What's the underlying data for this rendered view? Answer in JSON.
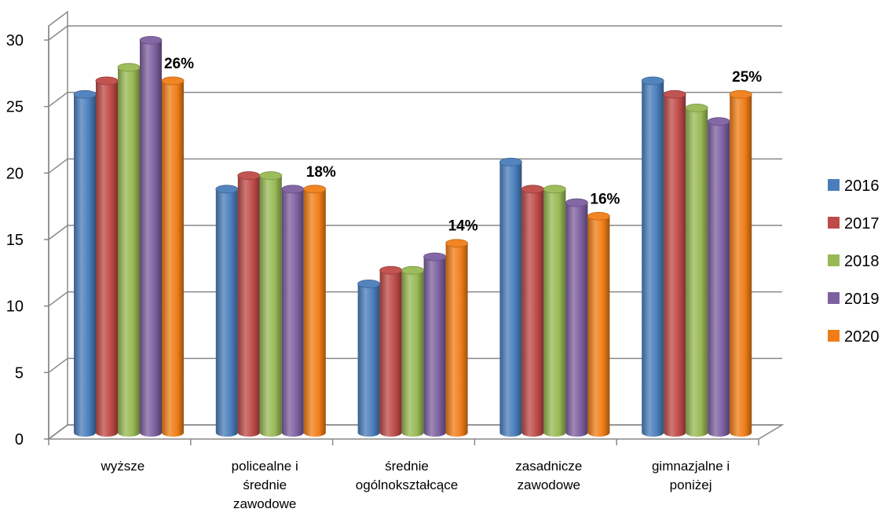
{
  "chart_data": {
    "type": "bar",
    "title": "",
    "xlabel": "",
    "ylabel": "",
    "ylim": [
      0,
      30
    ],
    "yticks": [
      0,
      5,
      10,
      15,
      20,
      25,
      30
    ],
    "grid": true,
    "legend_position": "right",
    "categories": [
      [
        "wyższe"
      ],
      [
        "policealne i",
        "średnie",
        "zawodowe"
      ],
      [
        "średnie",
        "ogólnokształcące"
      ],
      [
        "zasadnicze",
        "zawodowe"
      ],
      [
        "gimnazjalne i",
        "poniżej"
      ]
    ],
    "series": [
      {
        "name": "2016",
        "color": "#4a7ebb",
        "values": [
          25,
          18,
          11,
          20,
          26
        ]
      },
      {
        "name": "2017",
        "color": "#be4b48",
        "values": [
          26,
          19,
          12,
          18,
          25
        ]
      },
      {
        "name": "2018",
        "color": "#98b954",
        "values": [
          27,
          19,
          12,
          18,
          24
        ]
      },
      {
        "name": "2019",
        "color": "#7d60a0",
        "values": [
          29,
          18,
          13,
          17,
          23
        ]
      },
      {
        "name": "2020",
        "color": "#f07d17",
        "values": [
          26,
          18,
          14,
          16,
          25
        ]
      }
    ],
    "data_labels": [
      {
        "series": "2020",
        "category_index": 0,
        "text": "26%"
      },
      {
        "series": "2020",
        "category_index": 1,
        "text": "18%"
      },
      {
        "series": "2020",
        "category_index": 2,
        "text": "14%"
      },
      {
        "series": "2020",
        "category_index": 3,
        "text": "16%"
      },
      {
        "series": "2020",
        "category_index": 4,
        "text": "25%"
      }
    ]
  }
}
